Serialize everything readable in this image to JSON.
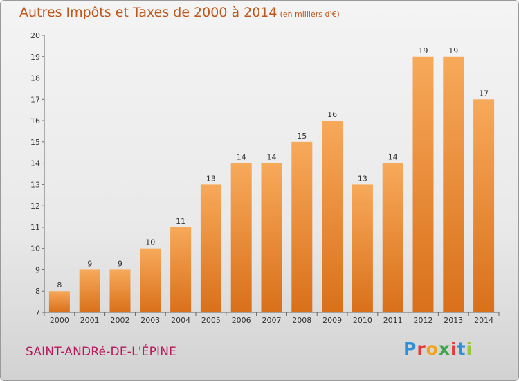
{
  "title": "Autres Impôts et Taxes de 2000 à 2014",
  "title_unit": "(en milliers d'€)",
  "commune": "SAINT-ANDRé-DE-L'ÉPINE",
  "logo": {
    "letters": [
      "P",
      "r",
      "o",
      "x",
      "i",
      "t",
      "i"
    ],
    "colors": [
      "#2f8fd8",
      "#e23b3b",
      "#f2a21d",
      "#3aa84a",
      "#e23b3b",
      "#2f8fd8",
      "#9bc53d"
    ]
  },
  "colors": {
    "title": "#c0561a",
    "commune": "#b8195c",
    "bar_top": "#f7a95a",
    "bar_bottom": "#d9701a"
  },
  "chart_data": {
    "type": "bar",
    "categories": [
      "2000",
      "2001",
      "2002",
      "2003",
      "2004",
      "2005",
      "2006",
      "2007",
      "2008",
      "2009",
      "2010",
      "2011",
      "2012",
      "2013",
      "2014"
    ],
    "values": [
      8,
      9,
      9,
      10,
      11,
      13,
      14,
      14,
      15,
      16,
      13,
      14,
      19,
      19,
      17
    ],
    "ylim": [
      7,
      20
    ],
    "yticks": [
      7,
      8,
      9,
      10,
      11,
      12,
      13,
      14,
      15,
      16,
      17,
      18,
      19,
      20
    ],
    "grid": false,
    "legend": "none"
  }
}
